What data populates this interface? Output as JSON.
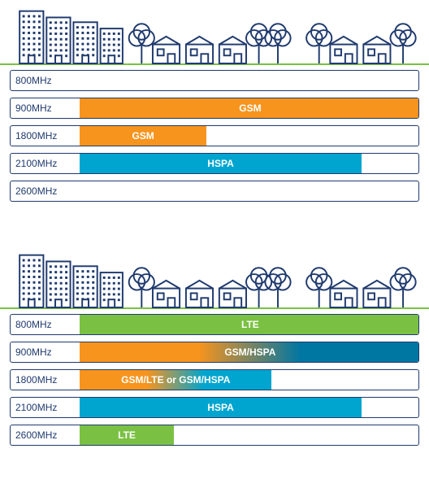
{
  "colors": {
    "outline": "#1f3a6e",
    "green": "#7ac143",
    "orange": "#f7941e",
    "teal": "#00a5cf",
    "darkteal": "#0076a3",
    "white": "#ffffff"
  },
  "panels": [
    {
      "rows": [
        {
          "label": "800MHz",
          "segments": []
        },
        {
          "label": "900MHz",
          "segments": [
            {
              "start": 17,
              "end": 100.5,
              "fill": "orange",
              "label": "GSM"
            }
          ]
        },
        {
          "label": "1800MHz",
          "segments": [
            {
              "start": 17,
              "end": 48,
              "fill": "orange",
              "label": "GSM"
            }
          ]
        },
        {
          "label": "2100MHz",
          "segments": [
            {
              "start": 17,
              "end": 86,
              "fill": "teal",
              "label": "HSPA"
            }
          ]
        },
        {
          "label": "2600MHz",
          "segments": []
        }
      ]
    },
    {
      "rows": [
        {
          "label": "800MHz",
          "segments": [
            {
              "start": 17,
              "end": 100.5,
              "fill": "green",
              "label": "LTE"
            }
          ]
        },
        {
          "label": "900MHz",
          "segments": [
            {
              "start": 17,
              "end": 100.5,
              "gradient": [
                "orange",
                "darkteal"
              ],
              "label": "GSM/HSPA"
            }
          ]
        },
        {
          "label": "1800MHz",
          "segments": [
            {
              "start": 17,
              "end": 64,
              "gradient": [
                "orange",
                "teal"
              ],
              "label": "GSM/LTE or GSM/HSPA"
            }
          ]
        },
        {
          "label": "2100MHz",
          "segments": [
            {
              "start": 17,
              "end": 86,
              "fill": "teal",
              "label": "HSPA"
            }
          ]
        },
        {
          "label": "2600MHz",
          "segments": [
            {
              "start": 17,
              "end": 40,
              "fill": "green",
              "label": "LTE"
            }
          ]
        }
      ]
    }
  ],
  "scene_svg_strokewidth": 2,
  "label_area_pct": 15
}
